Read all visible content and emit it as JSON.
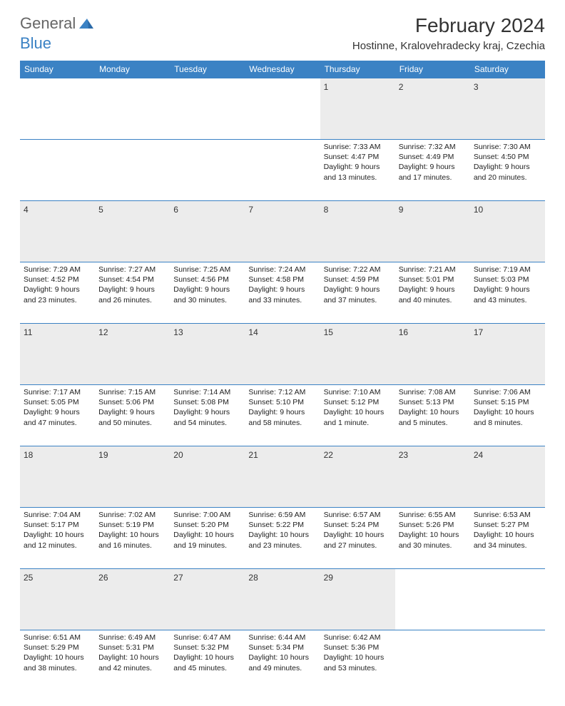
{
  "brand": {
    "part1": "General",
    "part2": "Blue"
  },
  "title": "February 2024",
  "location": "Hostinne, Kralovehradecky kraj, Czechia",
  "colors": {
    "header_bg": "#3b82c4",
    "daynum_bg": "#ececec",
    "border": "#3b82c4"
  },
  "fonts": {
    "title_size": 28,
    "location_size": 15,
    "header_size": 12,
    "cell_size": 10.5
  },
  "day_headers": [
    "Sunday",
    "Monday",
    "Tuesday",
    "Wednesday",
    "Thursday",
    "Friday",
    "Saturday"
  ],
  "weeks": [
    [
      null,
      null,
      null,
      null,
      {
        "n": "1",
        "sunrise": "7:33 AM",
        "sunset": "4:47 PM",
        "daylight": "9 hours and 13 minutes."
      },
      {
        "n": "2",
        "sunrise": "7:32 AM",
        "sunset": "4:49 PM",
        "daylight": "9 hours and 17 minutes."
      },
      {
        "n": "3",
        "sunrise": "7:30 AM",
        "sunset": "4:50 PM",
        "daylight": "9 hours and 20 minutes."
      }
    ],
    [
      {
        "n": "4",
        "sunrise": "7:29 AM",
        "sunset": "4:52 PM",
        "daylight": "9 hours and 23 minutes."
      },
      {
        "n": "5",
        "sunrise": "7:27 AM",
        "sunset": "4:54 PM",
        "daylight": "9 hours and 26 minutes."
      },
      {
        "n": "6",
        "sunrise": "7:25 AM",
        "sunset": "4:56 PM",
        "daylight": "9 hours and 30 minutes."
      },
      {
        "n": "7",
        "sunrise": "7:24 AM",
        "sunset": "4:58 PM",
        "daylight": "9 hours and 33 minutes."
      },
      {
        "n": "8",
        "sunrise": "7:22 AM",
        "sunset": "4:59 PM",
        "daylight": "9 hours and 37 minutes."
      },
      {
        "n": "9",
        "sunrise": "7:21 AM",
        "sunset": "5:01 PM",
        "daylight": "9 hours and 40 minutes."
      },
      {
        "n": "10",
        "sunrise": "7:19 AM",
        "sunset": "5:03 PM",
        "daylight": "9 hours and 43 minutes."
      }
    ],
    [
      {
        "n": "11",
        "sunrise": "7:17 AM",
        "sunset": "5:05 PM",
        "daylight": "9 hours and 47 minutes."
      },
      {
        "n": "12",
        "sunrise": "7:15 AM",
        "sunset": "5:06 PM",
        "daylight": "9 hours and 50 minutes."
      },
      {
        "n": "13",
        "sunrise": "7:14 AM",
        "sunset": "5:08 PM",
        "daylight": "9 hours and 54 minutes."
      },
      {
        "n": "14",
        "sunrise": "7:12 AM",
        "sunset": "5:10 PM",
        "daylight": "9 hours and 58 minutes."
      },
      {
        "n": "15",
        "sunrise": "7:10 AM",
        "sunset": "5:12 PM",
        "daylight": "10 hours and 1 minute."
      },
      {
        "n": "16",
        "sunrise": "7:08 AM",
        "sunset": "5:13 PM",
        "daylight": "10 hours and 5 minutes."
      },
      {
        "n": "17",
        "sunrise": "7:06 AM",
        "sunset": "5:15 PM",
        "daylight": "10 hours and 8 minutes."
      }
    ],
    [
      {
        "n": "18",
        "sunrise": "7:04 AM",
        "sunset": "5:17 PM",
        "daylight": "10 hours and 12 minutes."
      },
      {
        "n": "19",
        "sunrise": "7:02 AM",
        "sunset": "5:19 PM",
        "daylight": "10 hours and 16 minutes."
      },
      {
        "n": "20",
        "sunrise": "7:00 AM",
        "sunset": "5:20 PM",
        "daylight": "10 hours and 19 minutes."
      },
      {
        "n": "21",
        "sunrise": "6:59 AM",
        "sunset": "5:22 PM",
        "daylight": "10 hours and 23 minutes."
      },
      {
        "n": "22",
        "sunrise": "6:57 AM",
        "sunset": "5:24 PM",
        "daylight": "10 hours and 27 minutes."
      },
      {
        "n": "23",
        "sunrise": "6:55 AM",
        "sunset": "5:26 PM",
        "daylight": "10 hours and 30 minutes."
      },
      {
        "n": "24",
        "sunrise": "6:53 AM",
        "sunset": "5:27 PM",
        "daylight": "10 hours and 34 minutes."
      }
    ],
    [
      {
        "n": "25",
        "sunrise": "6:51 AM",
        "sunset": "5:29 PM",
        "daylight": "10 hours and 38 minutes."
      },
      {
        "n": "26",
        "sunrise": "6:49 AM",
        "sunset": "5:31 PM",
        "daylight": "10 hours and 42 minutes."
      },
      {
        "n": "27",
        "sunrise": "6:47 AM",
        "sunset": "5:32 PM",
        "daylight": "10 hours and 45 minutes."
      },
      {
        "n": "28",
        "sunrise": "6:44 AM",
        "sunset": "5:34 PM",
        "daylight": "10 hours and 49 minutes."
      },
      {
        "n": "29",
        "sunrise": "6:42 AM",
        "sunset": "5:36 PM",
        "daylight": "10 hours and 53 minutes."
      },
      null,
      null
    ]
  ]
}
